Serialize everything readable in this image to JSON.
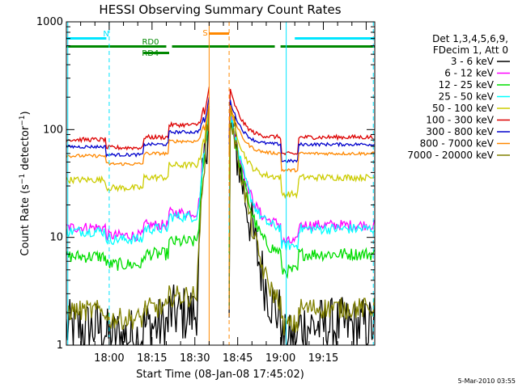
{
  "chart_data": {
    "type": "line",
    "title": "HESSI Observing Summary Count Rates",
    "xlabel": "Start Time (08-Jan-08 17:45:02)",
    "ylabel": "Count Rate (s⁻¹ detector⁻¹)",
    "ylabel_parts": {
      "main": "Count Rate (s",
      "sup1": "−1",
      "mid": " detector",
      "sup2": "−1",
      "end": ")"
    },
    "yscale": "log",
    "ylim": [
      1,
      1000
    ],
    "xlim_minutes": [
      -15,
      93
    ],
    "xlim_note": "minutes after 18:00",
    "x_tick_labels": [
      {
        "label": "18:00",
        "minutes": 0
      },
      {
        "label": "18:15",
        "minutes": 15
      },
      {
        "label": "18:30",
        "minutes": 30
      },
      {
        "label": "18:45",
        "minutes": 45
      },
      {
        "label": "19:00",
        "minutes": 60
      },
      {
        "label": "19:15",
        "minutes": 75
      }
    ],
    "y_tick_labels": [
      {
        "label": "1",
        "value": 1
      },
      {
        "label": "10",
        "value": 10
      },
      {
        "label": "100",
        "value": 100
      },
      {
        "label": "1000",
        "value": 1000
      }
    ],
    "footer": "5-Mar-2010 03:55",
    "legend": {
      "position": "right",
      "header": [
        "Det 1,3,4,5,6,9,",
        "FDecim 1, Att 0"
      ]
    },
    "series": [
      {
        "name": "3 - 6 keV",
        "color": "#000000",
        "base": 1.5,
        "peak": 150,
        "noise": 0.55
      },
      {
        "name": "6 - 12 keV",
        "color": "#ff00ff",
        "base": 13,
        "peak": 160,
        "noise": 0.1
      },
      {
        "name": "12 - 25 keV",
        "color": "#00dd00",
        "base": 7,
        "peak": 150,
        "noise": 0.12
      },
      {
        "name": "25 - 50 keV",
        "color": "#00ffff",
        "base": 12,
        "peak": 160,
        "noise": 0.1
      },
      {
        "name": "50 - 100 keV",
        "color": "#cccc00",
        "base": 36,
        "peak": 170,
        "noise": 0.06
      },
      {
        "name": "100 - 300 keV",
        "color": "#dd0000",
        "base": 85,
        "peak": 250,
        "noise": 0.04
      },
      {
        "name": "300 - 800 keV",
        "color": "#0000cc",
        "base": 73,
        "peak": 200,
        "noise": 0.03
      },
      {
        "name": "800 - 7000 keV",
        "color": "#ff8800",
        "base": 60,
        "peak": 180,
        "noise": 0.03
      },
      {
        "name": "7000 - 20000 keV",
        "color": "#808000",
        "base": 2.2,
        "peak": 150,
        "noise": 0.2
      }
    ],
    "flag_bars": [
      {
        "label": "N",
        "color": "#00e5ff",
        "level": 1,
        "intervals": [
          [
            -15,
            -1
          ],
          [
            65,
            93
          ]
        ]
      },
      {
        "label": "RD0",
        "color": "#008800",
        "level": 2,
        "intervals": [
          [
            -15,
            20
          ],
          [
            22,
            58
          ],
          [
            60,
            93
          ]
        ]
      },
      {
        "label": "RD4",
        "color": "#008800",
        "level": 3,
        "intervals": [
          [
            12,
            21
          ]
        ]
      },
      {
        "label": "S",
        "color": "#ff8800",
        "level": 0,
        "intervals": [
          [
            35,
            42
          ]
        ]
      }
    ],
    "vertical_markers": [
      {
        "minutes": -14.5,
        "color": "#00e5ff",
        "style": "solid"
      },
      {
        "minutes": 0,
        "color": "#00e5ff",
        "style": "dashed"
      },
      {
        "minutes": 35,
        "color": "#ff8800",
        "style": "solid"
      },
      {
        "minutes": 42,
        "color": "#ff8800",
        "style": "dashed"
      },
      {
        "minutes": 62,
        "color": "#00e5ff",
        "style": "solid"
      },
      {
        "minutes": 92.5,
        "color": "#00e5ff",
        "style": "dashed"
      }
    ],
    "gaps": [
      [
        35,
        42
      ]
    ]
  }
}
